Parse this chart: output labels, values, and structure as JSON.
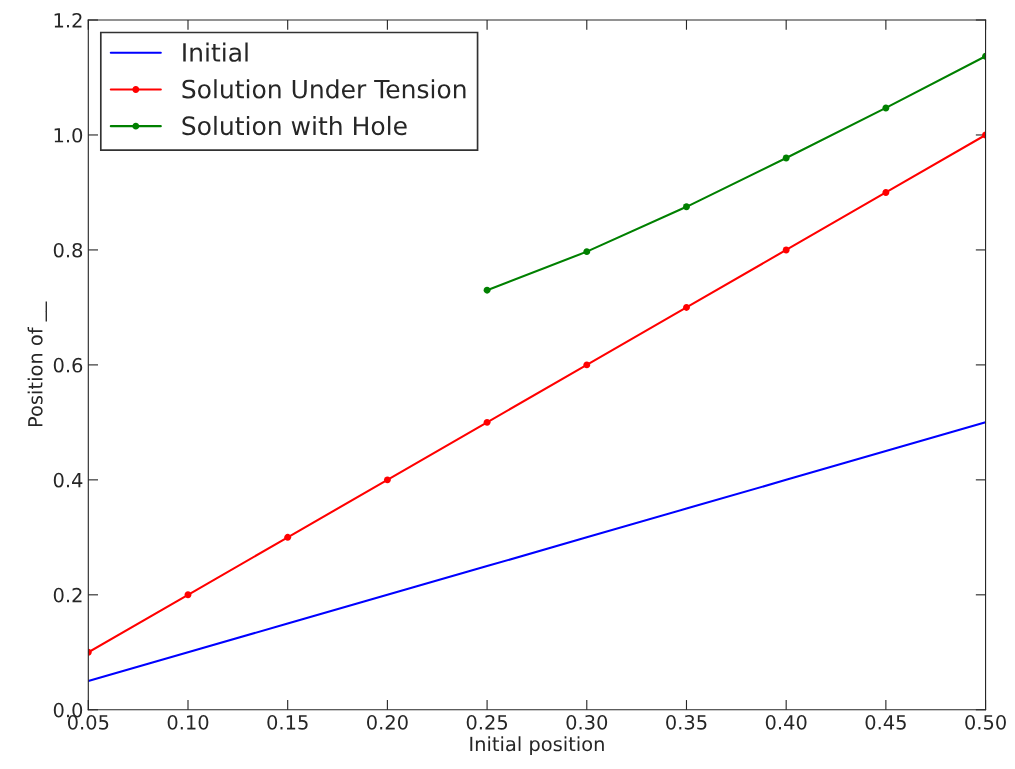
{
  "chart_data": {
    "type": "line",
    "xlabel": "Initial position",
    "ylabel": "Position of __",
    "x": [
      0.05,
      0.1,
      0.15,
      0.2,
      0.25,
      0.3,
      0.35,
      0.4,
      0.45,
      0.5
    ],
    "series": [
      {
        "name": "Initial",
        "color": "#0000ff",
        "marker": "none",
        "values": [
          0.05,
          0.1,
          0.15,
          0.2,
          0.25,
          0.3,
          0.35,
          0.4,
          0.45,
          0.5
        ]
      },
      {
        "name": "Solution Under Tension",
        "color": "#ff0000",
        "marker": "circle",
        "values": [
          0.1,
          0.2,
          0.3,
          0.4,
          0.5,
          0.6,
          0.7,
          0.8,
          0.9,
          1.0
        ]
      },
      {
        "name": "Solution with Hole",
        "color": "#008000",
        "marker": "circle",
        "values": [
          null,
          null,
          null,
          null,
          0.73,
          0.797,
          0.875,
          0.96,
          1.047,
          1.137
        ]
      }
    ],
    "xlim": [
      0.05,
      0.5
    ],
    "xticks": [
      {
        "value": 0.05,
        "label": "0.05"
      },
      {
        "value": 0.1,
        "label": "0.10"
      },
      {
        "value": 0.15,
        "label": "0.15"
      },
      {
        "value": 0.2,
        "label": "0.20"
      },
      {
        "value": 0.25,
        "label": "0.25"
      },
      {
        "value": 0.3,
        "label": "0.30"
      },
      {
        "value": 0.35,
        "label": "0.35"
      },
      {
        "value": 0.4,
        "label": "0.40"
      },
      {
        "value": 0.45,
        "label": "0.45"
      },
      {
        "value": 0.5,
        "label": "0.50"
      }
    ],
    "ylim": [
      0,
      1.2
    ],
    "yticks": [
      {
        "value": 0,
        "label": "0.0"
      },
      {
        "value": 0.2,
        "label": "0.2"
      },
      {
        "value": 0.4,
        "label": "0.4"
      },
      {
        "value": 0.6,
        "label": "0.6"
      },
      {
        "value": 0.8,
        "label": "0.8"
      },
      {
        "value": 1.0,
        "label": "1.0"
      },
      {
        "value": 1.2,
        "label": "1.2"
      }
    ],
    "legend": "top left",
    "grid": false
  }
}
